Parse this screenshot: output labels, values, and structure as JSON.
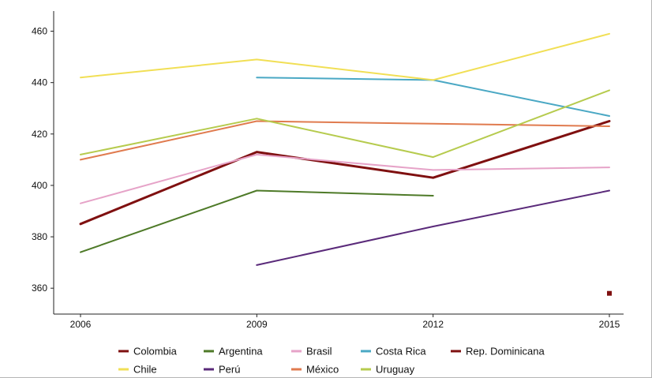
{
  "chart_data": {
    "type": "line",
    "title": "",
    "xlabel": "",
    "ylabel": "",
    "x": [
      2006,
      2009,
      2012,
      2015
    ],
    "x_tick_labels": [
      "2006",
      "2009",
      "2012",
      "2015"
    ],
    "y_ticks": [
      360,
      380,
      400,
      420,
      440,
      460
    ],
    "y_tick_labels": [
      "360",
      "380",
      "400",
      "420",
      "440",
      "460"
    ],
    "xlim": [
      2006,
      2015
    ],
    "ylim": [
      353,
      466
    ],
    "grid": false,
    "legend_position": "bottom",
    "series": [
      {
        "name": "Colombia",
        "color": "#7f1010",
        "width": 3,
        "values": [
          385,
          413,
          403,
          425
        ]
      },
      {
        "name": "Argentina",
        "color": "#4e7a28",
        "width": 2,
        "values": [
          374,
          398,
          396,
          null
        ]
      },
      {
        "name": "Brasil",
        "color": "#e6a3c8",
        "width": 2,
        "values": [
          393,
          412,
          406,
          407
        ]
      },
      {
        "name": "Costa Rica",
        "color": "#4aa8c4",
        "width": 2,
        "values": [
          null,
          442,
          441,
          427
        ]
      },
      {
        "name": "Rep. Dominicana",
        "color": "#7f1010",
        "width": 2,
        "values": [
          null,
          null,
          null,
          358
        ]
      },
      {
        "name": "Chile",
        "color": "#f1df55",
        "width": 2,
        "values": [
          442,
          449,
          441,
          459
        ]
      },
      {
        "name": "Perú",
        "color": "#5a2a7a",
        "width": 2,
        "values": [
          null,
          369,
          384,
          398
        ]
      },
      {
        "name": "México",
        "color": "#e07b4f",
        "width": 2,
        "values": [
          410,
          425,
          424,
          423
        ]
      },
      {
        "name": "Uruguay",
        "color": "#b6cb4e",
        "width": 2,
        "values": [
          412,
          426,
          411,
          437
        ]
      }
    ]
  }
}
